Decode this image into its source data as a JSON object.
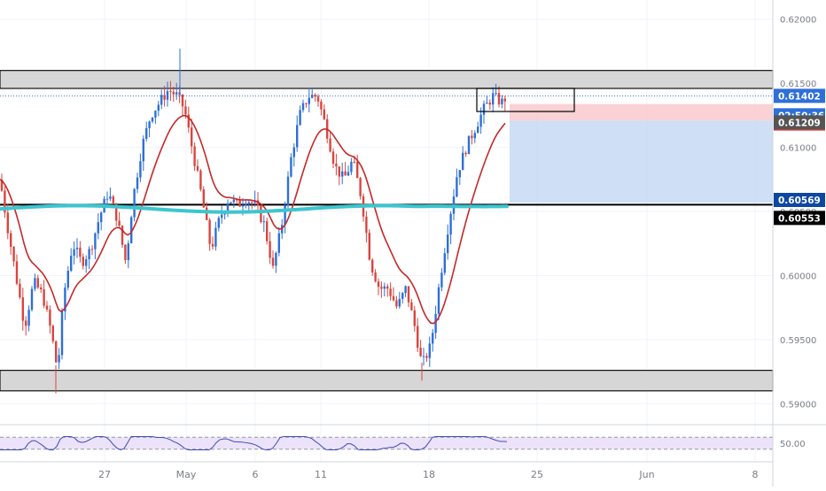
{
  "colors": {
    "background": "#ffffff",
    "grid": "#f0f3fa",
    "up_candle": "#2e6fd8",
    "down_candle": "#d9453f",
    "ema_fast": "#c62828",
    "ma_slow": "#3cc6cf",
    "zone_fill": "#d6d6d6",
    "zone_border": "#111111",
    "support_line": "#000000",
    "last_price_line": "#2e6fd8",
    "stop_zone": "#f9c9cc",
    "target_zone": "#c9dbf5",
    "rsi_band": "#ece3fb",
    "rsi_line": "#3f4cb8",
    "badge_blue": "#2e6fd8",
    "badge_red": "#e53935",
    "badge_dark": "#555555",
    "badge_black": "#000000",
    "badge_navy": "#0d47a1"
  },
  "chart_data": {
    "type": "candlestick",
    "symbol_quote": "forex pair (quote in USD-style decimals)",
    "x_tick_labels": [
      "27",
      "May",
      "6",
      "11",
      "18",
      "25",
      "Jun",
      "8"
    ],
    "y_tick_labels": [
      "0.62000",
      "0.61500",
      "0.61000",
      "0.60500",
      "0.60000",
      "0.59500",
      "0.59000"
    ],
    "ylim": [
      0.5885,
      0.6215
    ],
    "price_badges": [
      {
        "label": "0.61402",
        "role": "last-price",
        "value": 0.61402
      },
      {
        "label": "02:50:36",
        "role": "countdown"
      },
      {
        "label": "0.61338",
        "role": "stop-level",
        "value": 0.61338
      },
      {
        "label": "0.61209",
        "role": "entry-level",
        "value": 0.61209
      },
      {
        "label": "0.60569",
        "role": "target-level",
        "value": 0.60569
      },
      {
        "label": "0.60553",
        "role": "support-level",
        "value": 0.60553
      }
    ],
    "resistance_zone": [
      0.6146,
      0.616
    ],
    "support_zone": [
      0.591,
      0.5926
    ],
    "support_line": 0.60553,
    "position": {
      "type": "short",
      "entry": 0.61209,
      "stop": 0.61338,
      "target": 0.60569
    },
    "rsi": {
      "level_label": "50.00",
      "upper": 70,
      "lower": 30,
      "range": [
        0,
        100
      ]
    },
    "grid": true
  }
}
